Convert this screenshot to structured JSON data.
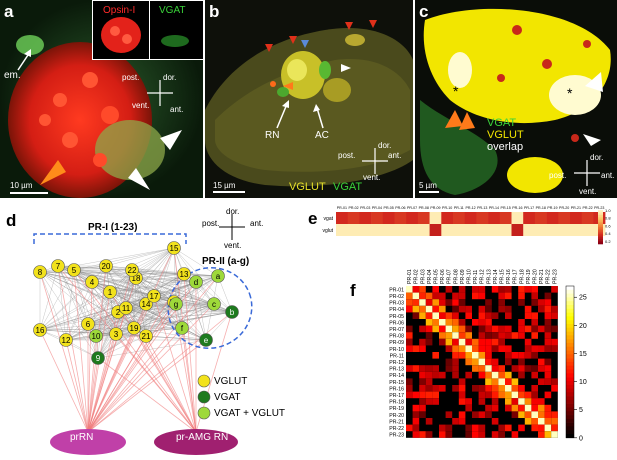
{
  "panel_a": {
    "label": "a",
    "inset_left_label": "Opsin-I",
    "inset_right_label": "VGAT",
    "em_label": "em.",
    "compass": {
      "top": "dor.",
      "left": "post.",
      "right": "ant.",
      "bottom": "vent."
    },
    "scale_bar": "10 µm"
  },
  "panel_b": {
    "label": "b",
    "rn_label": "RN",
    "ac_label": "AC",
    "compass": {
      "top": "dor.",
      "left": "post.",
      "right": "ant.",
      "bottom": "vent."
    },
    "scale_bar": "15 µm",
    "legend_vglut": "VGLUT",
    "legend_vgat": "VGAT"
  },
  "panel_c": {
    "label": "c",
    "overlap_vgat": "VGAT",
    "overlap_vglut": "VGLUT",
    "overlap_word": "overlap",
    "compass": {
      "top": "dor.",
      "left": "post.",
      "right": "ant.",
      "bottom": "vent."
    },
    "scale_bar": "5 µm",
    "star": "*"
  },
  "panel_d": {
    "label": "d",
    "pr1_label": "PR-I (1-23)",
    "pr2_label": "PR-II (a-g)",
    "compass": {
      "top": "dor.",
      "left": "post.",
      "right": "ant.",
      "bottom": "vent."
    },
    "legend": [
      {
        "label": "VGLUT",
        "color": "#f2e21c"
      },
      {
        "label": "VGAT",
        "color": "#1e7a1e"
      },
      {
        "label": "VGAT + VGLUT",
        "color": "#9ed93a"
      }
    ],
    "target_left": "prRN",
    "target_right": "pr-AMG RN",
    "nodes_pr1": [
      "1",
      "2",
      "3",
      "4",
      "5",
      "6",
      "7",
      "8",
      "9",
      "10",
      "11",
      "12",
      "13",
      "14",
      "15",
      "16",
      "17",
      "18",
      "19",
      "20",
      "21",
      "22",
      "23"
    ],
    "nodes_pr2": [
      "a",
      "b",
      "c",
      "d",
      "e",
      "f",
      "g"
    ]
  },
  "panel_e": {
    "label": "e",
    "row_labels": [
      "vgat",
      "vglut"
    ],
    "columns": [
      "PR-01",
      "PR-02",
      "PR-03",
      "PR-04",
      "PR-05",
      "PR-06",
      "PR-07",
      "PR-08",
      "PR-09",
      "PR-10",
      "PR-11",
      "PR-12",
      "PR-13",
      "PR-14",
      "PR-15",
      "PR-16",
      "PR-17",
      "PR-18",
      "PR-19",
      "PR-20",
      "PR-21",
      "PR-22",
      "PR-23"
    ],
    "vgat": [
      0.25,
      0.3,
      0.25,
      0.3,
      0.25,
      0.3,
      0.25,
      0.3,
      0.95,
      0.25,
      0.3,
      0.25,
      0.3,
      0.25,
      0.3,
      0.95,
      0.25,
      0.3,
      0.25,
      0.3,
      0.25,
      0.3,
      0.25
    ],
    "vglut": [
      0.95,
      0.95,
      0.95,
      0.95,
      0.95,
      0.95,
      0.95,
      0.95,
      0.2,
      0.95,
      0.95,
      0.95,
      0.95,
      0.95,
      0.95,
      0.2,
      0.95,
      0.95,
      0.95,
      0.95,
      0.95,
      0.95,
      0.95
    ],
    "colorbar_ticks": [
      "1.0",
      "0.8",
      "0.6",
      "0.4",
      "0.2"
    ]
  },
  "panel_f": {
    "label": "f",
    "labels": [
      "PR-01",
      "PR-02",
      "PR-03",
      "PR-04",
      "PR-05",
      "PR-06",
      "PR-07",
      "PR-08",
      "PR-09",
      "PR-10",
      "PR-11",
      "PR-12",
      "PR-13",
      "PR-14",
      "PR-15",
      "PR-16",
      "PR-17",
      "PR-18",
      "PR-19",
      "PR-20",
      "PR-21",
      "PR-22",
      "PR-23"
    ],
    "colorbar_ticks": [
      "25",
      "20",
      "15",
      "10",
      "5",
      "0"
    ],
    "vmax": 27
  }
}
